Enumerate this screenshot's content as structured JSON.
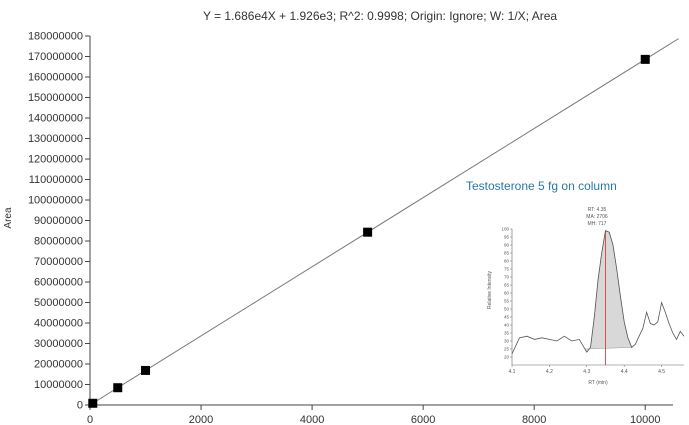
{
  "chart_data": [
    {
      "type": "scatter",
      "title": "Y = 1.686e4X + 1.926e3; R^2: 0.9998; Origin: Ignore; W: 1/X; Area",
      "xlabel": "",
      "ylabel": "Area",
      "xlim": [
        0,
        10500
      ],
      "ylim": [
        0,
        180000000
      ],
      "x_ticks": [
        0,
        2000,
        4000,
        6000,
        8000,
        10000
      ],
      "x_tick_labels": [
        "0",
        "2000",
        "4000",
        "6000",
        "8000",
        "10000"
      ],
      "y_ticks": [
        0,
        10000000,
        20000000,
        30000000,
        40000000,
        50000000,
        60000000,
        70000000,
        80000000,
        90000000,
        100000000,
        110000000,
        120000000,
        130000000,
        140000000,
        150000000,
        160000000,
        170000000,
        180000000
      ],
      "y_tick_labels": [
        "0",
        "10000000",
        "20000000",
        "30000000",
        "40000000",
        "50000000",
        "60000000",
        "70000000",
        "80000000",
        "90000000",
        "100000000",
        "110000000",
        "120000000",
        "130000000",
        "140000000",
        "150000000",
        "160000000",
        "170000000",
        "180000000"
      ],
      "grid": false,
      "points": {
        "x": [
          50,
          500,
          1000,
          5000,
          10000
        ],
        "y": [
          843000,
          8430000,
          16860000,
          84300000,
          168600000
        ]
      },
      "fit_line": {
        "slope": 16860,
        "intercept": 1926,
        "x_range": [
          0,
          10600
        ]
      },
      "colors": {
        "points": "#000000",
        "line": "#777777",
        "axis": "#444444",
        "text": "#333333"
      }
    },
    {
      "type": "area",
      "title": "Testosterone 5 fg on column",
      "xlabel": "RT (min)",
      "ylabel": "Relative Intensity",
      "xlim": [
        4.1,
        4.56
      ],
      "ylim": [
        15,
        100
      ],
      "x_ticks": [
        4.1,
        4.2,
        4.3,
        4.4,
        4.5
      ],
      "x_tick_labels": [
        "4.1",
        "4.2",
        "4.3",
        "4.4",
        "4.5"
      ],
      "y_ticks": [
        20,
        25,
        30,
        35,
        40,
        45,
        50,
        55,
        60,
        65,
        70,
        75,
        80,
        85,
        90,
        95,
        100
      ],
      "y_tick_labels": [
        "20",
        "25",
        "30",
        "35",
        "40",
        "45",
        "50",
        "55",
        "60",
        "65",
        "70",
        "75",
        "80",
        "85",
        "90",
        "95",
        "100"
      ],
      "peak_annotation": [
        "RT: 4.35",
        "MA: 2706",
        "MH: 717"
      ],
      "trace": {
        "x": [
          4.1,
          4.12,
          4.14,
          4.16,
          4.18,
          4.2,
          4.22,
          4.24,
          4.26,
          4.28,
          4.3,
          4.31,
          4.32,
          4.33,
          4.34,
          4.35,
          4.36,
          4.37,
          4.38,
          4.39,
          4.4,
          4.41,
          4.42,
          4.43,
          4.44,
          4.45,
          4.46,
          4.47,
          4.48,
          4.49,
          4.5,
          4.51,
          4.52,
          4.53,
          4.54,
          4.55,
          4.56
        ],
        "y": [
          22,
          32,
          33,
          31,
          32,
          31,
          30,
          33,
          30,
          31,
          23,
          26,
          45,
          68,
          85,
          99,
          98,
          90,
          75,
          58,
          42,
          32,
          26,
          28,
          33,
          38,
          48,
          41,
          40,
          42,
          54,
          48,
          41,
          35,
          31,
          36,
          33
        ]
      },
      "peak_area_x_range": [
        4.295,
        4.42
      ],
      "peak_rt": 4.35,
      "colors": {
        "title": "#2878a8",
        "trace": "#555555",
        "fill": "#d8d8d8",
        "rt_line": "#d03030"
      }
    }
  ]
}
